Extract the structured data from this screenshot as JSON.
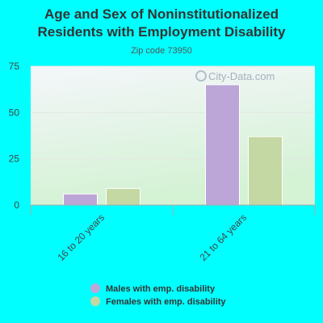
{
  "chart_data": {
    "type": "bar",
    "title_lines": [
      "Age and Sex of Noninstitutionalized",
      "Residents with Employment Disability"
    ],
    "subtitle": "Zip code 73950",
    "categories": [
      "16 to 20 years",
      "21 to 64 years"
    ],
    "series": [
      {
        "name": "Males with emp. disability",
        "color": "#bca6d8",
        "values": [
          6,
          65
        ]
      },
      {
        "name": "Females with emp. disability",
        "color": "#c4d8a4",
        "values": [
          9,
          37
        ]
      }
    ],
    "ylim": [
      0,
      75
    ],
    "yticks": [
      0,
      25,
      50,
      75
    ],
    "grid": true,
    "legend_position": "bottom",
    "watermark": "City-Data.com"
  },
  "colors": {
    "page_background": "#00ffff",
    "plot_background_top": "#f3f5f8",
    "plot_background_bottom": "#d6f2d6"
  }
}
